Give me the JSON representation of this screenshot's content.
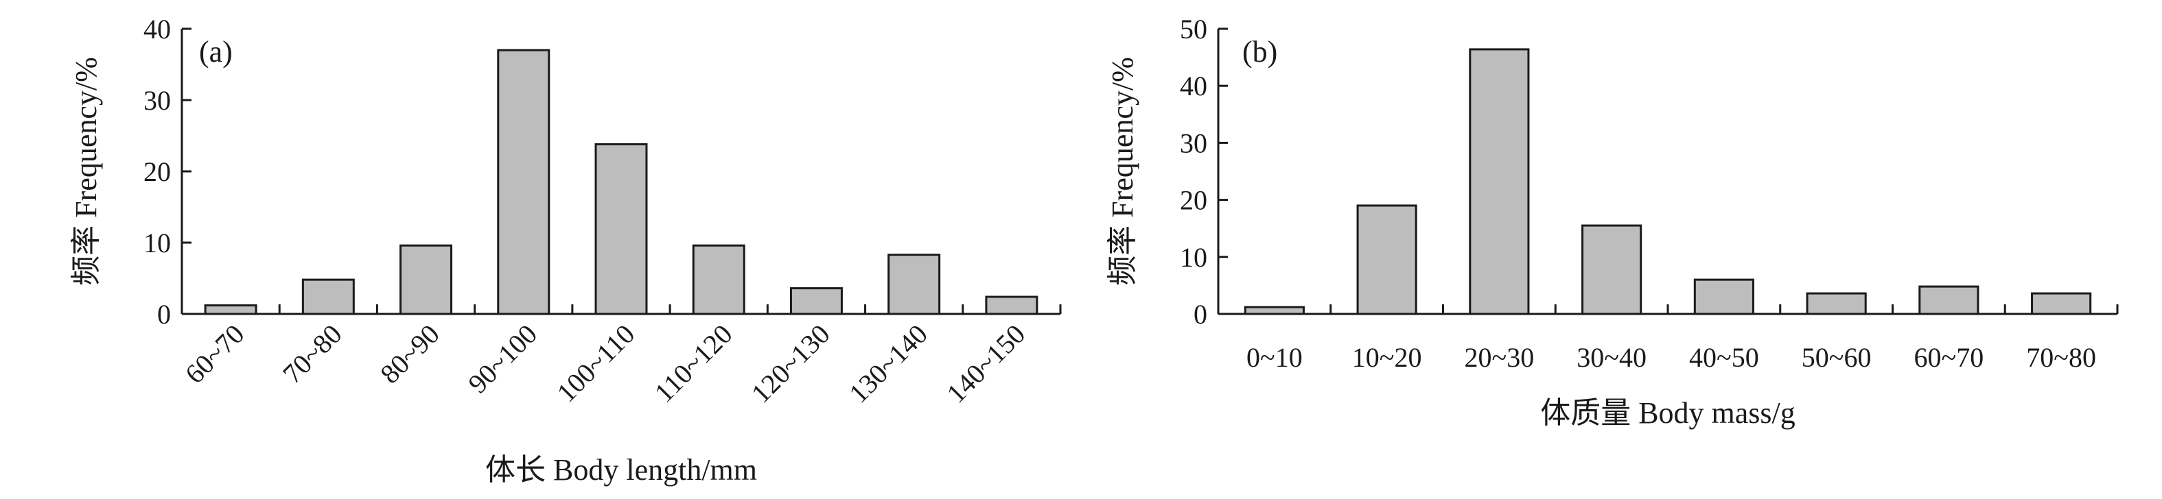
{
  "chart_data": [
    {
      "type": "bar",
      "panel_label": "(a)",
      "xlabel": "体长 Body length/mm",
      "ylabel": "频率 Frequency/%",
      "ylim": [
        0,
        40
      ],
      "yticks": [
        0,
        10,
        20,
        30,
        40
      ],
      "categories": [
        "60~70",
        "70~80",
        "80~90",
        "90~100",
        "100~110",
        "110~120",
        "120~130",
        "130~140",
        "140~150"
      ],
      "values": [
        1.2,
        4.8,
        9.6,
        37,
        23.8,
        9.6,
        3.6,
        8.3,
        2.4
      ],
      "grid": false,
      "bar_color": "#bdbdbd",
      "x_tick_rotation": "rotated"
    },
    {
      "type": "bar",
      "panel_label": "(b)",
      "xlabel": "体质量 Body mass/g",
      "ylabel": "频率 Frequency/%",
      "ylim": [
        0,
        50
      ],
      "yticks": [
        0,
        10,
        20,
        30,
        40,
        50
      ],
      "categories": [
        "0~10",
        "10~20",
        "20~30",
        "30~40",
        "40~50",
        "50~60",
        "60~70",
        "70~80"
      ],
      "values": [
        1.2,
        19,
        46.4,
        15.5,
        6,
        3.6,
        4.8,
        3.6
      ],
      "grid": false,
      "bar_color": "#bdbdbd",
      "x_tick_rotation": "horizontal"
    }
  ]
}
